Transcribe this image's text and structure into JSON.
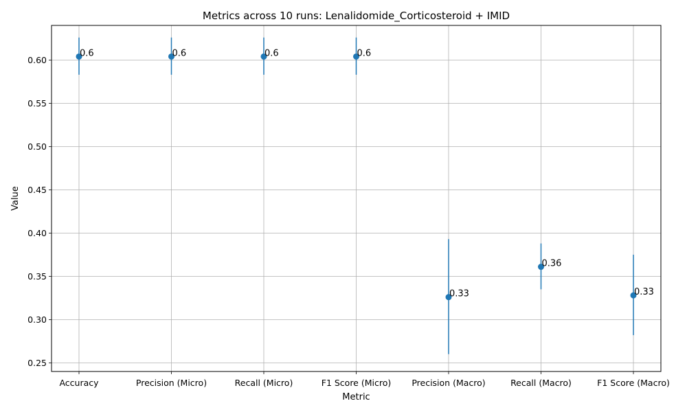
{
  "chart_data": {
    "type": "scatter",
    "title": "Metrics across 10 runs: Lenalidomide_Corticosteroid + IMID",
    "xlabel": "Metric",
    "ylabel": "Value",
    "categories": [
      "Accuracy",
      "Precision (Micro)",
      "Recall (Micro)",
      "F1 Score (Micro)",
      "Precision (Macro)",
      "Recall (Macro)",
      "F1 Score (Macro)"
    ],
    "values": [
      0.604,
      0.604,
      0.604,
      0.604,
      0.326,
      0.361,
      0.328
    ],
    "error_low": [
      0.583,
      0.583,
      0.583,
      0.583,
      0.26,
      0.335,
      0.282
    ],
    "error_high": [
      0.626,
      0.626,
      0.626,
      0.626,
      0.393,
      0.388,
      0.375
    ],
    "data_labels": [
      "0.6",
      "0.6",
      "0.6",
      "0.6",
      "0.33",
      "0.36",
      "0.33"
    ],
    "ylim": [
      0.24,
      0.64
    ],
    "yticks": [
      0.25,
      0.3,
      0.35,
      0.4,
      0.45,
      0.5,
      0.55,
      0.6
    ],
    "ytick_labels": [
      "0.25",
      "0.30",
      "0.35",
      "0.40",
      "0.45",
      "0.50",
      "0.55",
      "0.60"
    ],
    "grid": true,
    "color": "#1f77b4"
  }
}
